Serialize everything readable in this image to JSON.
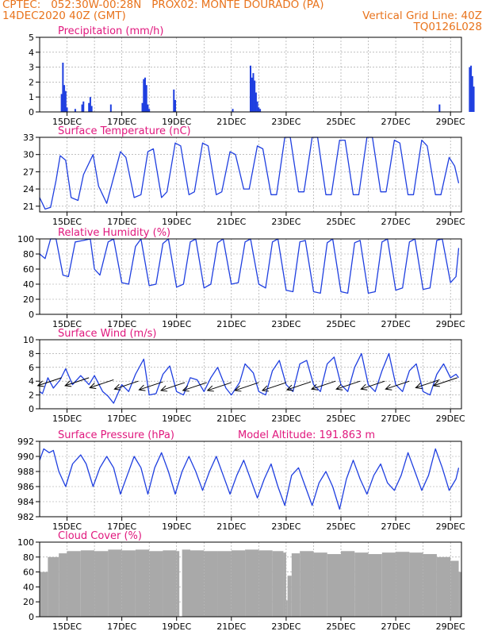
{
  "header": {
    "left_line1": "CPTEC:   052:30W-00:28N   PROX02: MONTE DOURADO (PA)",
    "left_line2": "14DEC2020 40Z (GMT)",
    "right_line2": "Vertical Grid Line: 40Z",
    "right_line3": "TQ0126L028"
  },
  "colors": {
    "header": "#e8731c",
    "panel_title": "#e0177d",
    "series": "#1f3fe0",
    "cloud": "#a9a9a9",
    "wind_arrow": "#000000"
  },
  "x_axis": {
    "start": "14DEC",
    "end": "29DEC",
    "ticks": [
      "15DEC",
      "17DEC",
      "19DEC",
      "21DEC",
      "23DEC",
      "25DEC",
      "27DEC",
      "29DEC"
    ],
    "tick_day": [
      15,
      17,
      19,
      21,
      23,
      25,
      27,
      29
    ]
  },
  "chart_data": [
    {
      "type": "bar",
      "title": "Precipitation (mm/h)",
      "ylim": [
        0,
        5
      ],
      "yticks": [
        "0",
        "1",
        "2",
        "3",
        "4",
        "5"
      ],
      "x": [
        14.8,
        14.85,
        14.9,
        14.95,
        15.0,
        15.3,
        15.55,
        15.6,
        15.8,
        15.85,
        15.9,
        16.6,
        17.75,
        17.8,
        17.85,
        17.9,
        17.95,
        18.0,
        18.9,
        18.95,
        21.05,
        21.7,
        21.75,
        21.8,
        21.85,
        21.9,
        21.95,
        22.0,
        22.05,
        28.6,
        29.7,
        29.75,
        29.8,
        29.85
      ],
      "values": [
        1.2,
        3.3,
        1.8,
        1.4,
        0.3,
        0.2,
        0.5,
        0.7,
        0.6,
        1.0,
        0.4,
        0.5,
        0.6,
        2.2,
        2.3,
        1.8,
        0.5,
        0.2,
        1.5,
        0.8,
        0.2,
        3.1,
        2.3,
        2.6,
        2.1,
        1.3,
        0.7,
        0.3,
        0.2,
        0.5,
        3.0,
        3.1,
        2.4,
        1.7
      ]
    },
    {
      "type": "line",
      "title": "Surface Temperature (nC)",
      "ylim": [
        20,
        33
      ],
      "yticks": [
        "21",
        "24",
        "27",
        "30",
        "33"
      ],
      "x": [
        14.0,
        14.2,
        14.4,
        14.6,
        14.75,
        14.95,
        15.15,
        15.4,
        15.6,
        15.95,
        16.15,
        16.45,
        16.7,
        16.95,
        17.15,
        17.45,
        17.7,
        17.95,
        18.15,
        18.45,
        18.65,
        18.95,
        19.15,
        19.45,
        19.65,
        19.95,
        20.15,
        20.45,
        20.65,
        20.95,
        21.15,
        21.45,
        21.65,
        21.95,
        22.15,
        22.45,
        22.65,
        22.95,
        23.15,
        23.45,
        23.65,
        23.95,
        24.15,
        24.45,
        24.65,
        24.95,
        25.15,
        25.45,
        25.65,
        25.95,
        26.15,
        26.45,
        26.65,
        26.95,
        27.15,
        27.45,
        27.65,
        27.95,
        28.15,
        28.45,
        28.65,
        28.95,
        29.15,
        29.3
      ],
      "values": [
        22.5,
        20.5,
        20.8,
        25.5,
        29.8,
        29.0,
        22.5,
        22.0,
        26.5,
        30.0,
        24.5,
        21.5,
        26.0,
        30.5,
        29.5,
        22.5,
        23.0,
        30.5,
        31.0,
        22.5,
        23.5,
        32.0,
        31.5,
        23.0,
        23.5,
        32.0,
        31.5,
        23.0,
        23.5,
        30.5,
        30.0,
        24.0,
        24.0,
        31.5,
        31.0,
        23.0,
        23.0,
        33.0,
        33.0,
        23.5,
        23.5,
        33.0,
        33.0,
        23.0,
        23.0,
        32.5,
        32.5,
        23.0,
        23.0,
        33.0,
        33.0,
        23.5,
        23.5,
        32.5,
        32.0,
        23.0,
        23.0,
        32.5,
        31.5,
        23.0,
        23.0,
        29.5,
        28.0,
        25.0
      ]
    },
    {
      "type": "line",
      "title": "Relative Humidity (%)",
      "ylim": [
        0,
        100
      ],
      "yticks": [
        "0",
        "20",
        "40",
        "60",
        "80",
        "100"
      ],
      "x": [
        14.0,
        14.2,
        14.4,
        14.6,
        14.85,
        15.05,
        15.3,
        15.6,
        15.85,
        16.0,
        16.2,
        16.5,
        16.7,
        17.0,
        17.25,
        17.5,
        17.7,
        18.0,
        18.25,
        18.5,
        18.7,
        19.0,
        19.25,
        19.5,
        19.7,
        20.0,
        20.25,
        20.5,
        20.7,
        21.0,
        21.25,
        21.5,
        21.7,
        22.0,
        22.25,
        22.5,
        22.7,
        23.0,
        23.25,
        23.5,
        23.7,
        24.0,
        24.25,
        24.5,
        24.7,
        25.0,
        25.25,
        25.5,
        25.7,
        26.0,
        26.25,
        26.5,
        26.7,
        27.0,
        27.25,
        27.5,
        27.7,
        28.0,
        28.25,
        28.5,
        28.7,
        29.0,
        29.2,
        29.3
      ],
      "values": [
        80,
        74,
        100,
        100,
        52,
        50,
        96,
        98,
        100,
        60,
        52,
        96,
        100,
        42,
        40,
        90,
        100,
        38,
        40,
        94,
        100,
        36,
        40,
        96,
        100,
        35,
        40,
        95,
        100,
        40,
        42,
        96,
        100,
        40,
        35,
        96,
        100,
        32,
        30,
        96,
        98,
        30,
        28,
        95,
        100,
        30,
        28,
        95,
        98,
        28,
        30,
        96,
        100,
        32,
        35,
        96,
        100,
        33,
        35,
        98,
        100,
        42,
        50,
        88
      ]
    },
    {
      "type": "line",
      "title": "Surface Wind (m/s)",
      "ylim": [
        0,
        10
      ],
      "yticks": [
        "0",
        "2",
        "4",
        "6",
        "8",
        "10"
      ],
      "x": [
        14.0,
        14.1,
        14.3,
        14.5,
        14.75,
        14.95,
        15.2,
        15.5,
        15.8,
        16.0,
        16.3,
        16.5,
        16.7,
        17.0,
        17.25,
        17.5,
        17.8,
        18.0,
        18.25,
        18.5,
        18.75,
        19.0,
        19.25,
        19.5,
        19.75,
        20.0,
        20.25,
        20.5,
        20.8,
        21.0,
        21.3,
        21.5,
        21.8,
        22.0,
        22.25,
        22.5,
        22.75,
        23.0,
        23.25,
        23.5,
        23.75,
        24.0,
        24.25,
        24.5,
        24.75,
        25.0,
        25.25,
        25.5,
        25.75,
        26.0,
        26.25,
        26.5,
        26.75,
        27.0,
        27.25,
        27.5,
        27.75,
        28.0,
        28.25,
        28.5,
        28.75,
        29.0,
        29.2,
        29.3
      ],
      "values": [
        2.5,
        2.2,
        4.5,
        3.0,
        4.2,
        5.8,
        3.5,
        4.8,
        3.5,
        4.8,
        2.5,
        1.8,
        0.8,
        3.5,
        2.5,
        5.0,
        7.2,
        2.0,
        2.2,
        5.0,
        6.2,
        2.5,
        2.0,
        4.5,
        4.2,
        2.5,
        4.5,
        6.0,
        3.0,
        2.0,
        3.8,
        6.5,
        5.2,
        2.5,
        2.0,
        5.5,
        7.0,
        3.5,
        2.5,
        6.5,
        7.0,
        3.5,
        2.5,
        6.5,
        7.5,
        3.5,
        2.5,
        6.0,
        8.0,
        3.5,
        2.5,
        5.5,
        8.0,
        3.5,
        2.5,
        5.5,
        6.5,
        2.5,
        2.0,
        5.0,
        6.5,
        4.5,
        5.0,
        4.5
      ],
      "arrows_x": [
        14.8,
        15.8,
        16.7,
        17.6,
        18.5,
        19.3,
        20.1,
        21.0,
        22.0,
        23.0,
        23.9,
        24.8,
        25.7,
        26.6,
        27.5,
        28.6,
        29.25
      ],
      "arrows_y": [
        4.5,
        4.5,
        4.2,
        4.0,
        3.9,
        3.8,
        3.8,
        3.8,
        3.8,
        3.8,
        3.9,
        4.0,
        4.0,
        4.0,
        4.0,
        4.2,
        4.5
      ]
    },
    {
      "type": "line",
      "title": "Surface Pressure (hPa)",
      "annotation": "Model Altitude: 191.863 m",
      "ylim": [
        982,
        992
      ],
      "yticks": [
        "982",
        "984",
        "986",
        "988",
        "990",
        "992"
      ],
      "x": [
        14.0,
        14.15,
        14.35,
        14.5,
        14.7,
        14.95,
        15.2,
        15.5,
        15.7,
        15.95,
        16.2,
        16.45,
        16.7,
        16.95,
        17.2,
        17.45,
        17.7,
        17.95,
        18.2,
        18.45,
        18.7,
        18.95,
        19.2,
        19.45,
        19.7,
        19.95,
        20.2,
        20.45,
        20.7,
        20.95,
        21.2,
        21.45,
        21.7,
        21.95,
        22.2,
        22.45,
        22.7,
        22.95,
        23.2,
        23.45,
        23.7,
        23.95,
        24.2,
        24.45,
        24.7,
        24.95,
        25.2,
        25.45,
        25.7,
        25.95,
        26.2,
        26.45,
        26.7,
        26.95,
        27.2,
        27.45,
        27.7,
        27.95,
        28.2,
        28.45,
        28.7,
        28.95,
        29.2,
        29.3
      ],
      "values": [
        989.5,
        991.0,
        990.5,
        990.8,
        988.0,
        986.0,
        989.0,
        990.2,
        989.0,
        986.0,
        988.5,
        990.0,
        988.5,
        985.0,
        987.5,
        990.0,
        988.5,
        985.0,
        988.5,
        990.5,
        988.0,
        985.0,
        988.0,
        990.0,
        988.0,
        985.5,
        988.0,
        990.0,
        987.5,
        985.0,
        987.5,
        989.5,
        987.0,
        984.5,
        987.0,
        989.0,
        986.0,
        983.5,
        987.5,
        988.5,
        986.0,
        983.5,
        986.5,
        988.0,
        986.0,
        983.0,
        987.0,
        989.5,
        987.0,
        985.0,
        987.5,
        989.0,
        986.5,
        985.5,
        987.5,
        990.5,
        988.0,
        985.5,
        987.5,
        991.0,
        988.5,
        985.5,
        987.0,
        988.5
      ]
    },
    {
      "type": "bar",
      "title": "Cloud Cover (%)",
      "ylim": [
        0,
        100
      ],
      "yticks": [
        "0",
        "20",
        "40",
        "60",
        "80",
        "100"
      ],
      "x": [
        14.0,
        14.3,
        14.7,
        15.0,
        15.5,
        16.0,
        16.5,
        17.0,
        17.5,
        18.0,
        18.5,
        19.0,
        19.1,
        19.2,
        19.5,
        20.0,
        20.5,
        21.0,
        21.5,
        22.0,
        22.5,
        22.9,
        23.0,
        23.05,
        23.2,
        23.5,
        24.0,
        24.5,
        25.0,
        25.5,
        26.0,
        26.5,
        27.0,
        27.5,
        28.0,
        28.5,
        29.0,
        29.3
      ],
      "values": [
        60,
        80,
        85,
        88,
        89,
        88,
        90,
        89,
        90,
        88,
        89,
        88,
        0,
        90,
        89,
        88,
        88,
        89,
        90,
        89,
        88,
        86,
        22,
        55,
        85,
        88,
        86,
        84,
        88,
        86,
        84,
        86,
        87,
        86,
        84,
        80,
        75,
        60
      ]
    }
  ]
}
